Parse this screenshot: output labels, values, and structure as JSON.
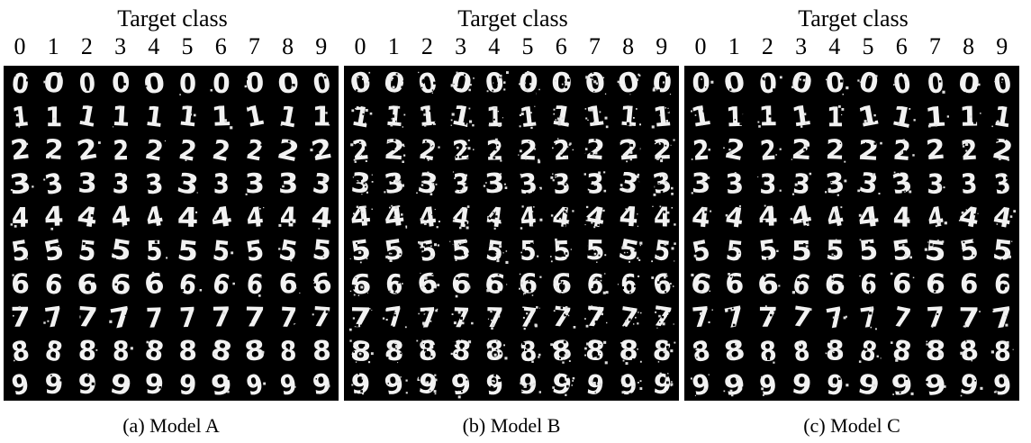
{
  "header_label": "Target class",
  "class_labels": [
    "0",
    "1",
    "2",
    "3",
    "4",
    "5",
    "6",
    "7",
    "8",
    "9"
  ],
  "source_digits": [
    "0",
    "1",
    "2",
    "3",
    "4",
    "5",
    "6",
    "7",
    "8",
    "9"
  ],
  "colors": {
    "page_background": "#ffffff",
    "grid_background": "#000000",
    "digit_stroke": "#f2f2f2"
  },
  "panels": [
    {
      "id": "a",
      "caption": "(a) Model A",
      "noise": 0.05
    },
    {
      "id": "b",
      "caption": "(b) Model B",
      "noise": 0.28
    },
    {
      "id": "c",
      "caption": "(c) Model C",
      "noise": 0.12
    }
  ]
}
